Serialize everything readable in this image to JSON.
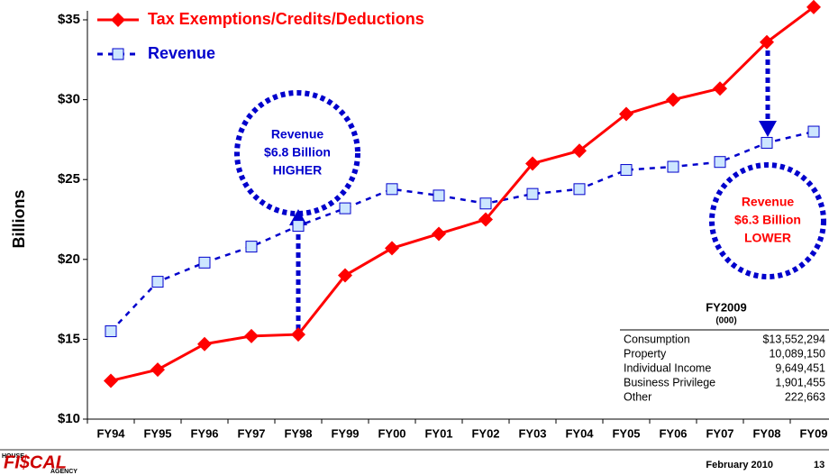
{
  "chart_data": {
    "type": "line",
    "y_label": "Billions",
    "categories": [
      "FY94",
      "FY95",
      "FY96",
      "FY97",
      "FY98",
      "FY99",
      "FY00",
      "FY01",
      "FY02",
      "FY03",
      "FY04",
      "FY05",
      "FY06",
      "FY07",
      "FY08",
      "FY09"
    ],
    "series": [
      {
        "name": "Tax Exemptions/Credits/Deductions",
        "color": "#ff0000",
        "marker": "diamond",
        "line": "solid",
        "values": [
          12.4,
          13.1,
          14.7,
          15.2,
          15.3,
          19.0,
          20.7,
          21.6,
          22.5,
          26.0,
          26.8,
          29.1,
          30.0,
          30.7,
          33.6,
          35.8
        ]
      },
      {
        "name": "Revenue",
        "color": "#0000cc",
        "marker": "square",
        "line": "dashed",
        "values": [
          15.5,
          18.6,
          19.8,
          20.8,
          22.1,
          23.2,
          24.4,
          24.0,
          23.5,
          24.1,
          24.4,
          25.6,
          25.8,
          26.1,
          27.3,
          28.0
        ]
      }
    ],
    "ylim": [
      10,
      35
    ],
    "yticks": [
      {
        "value": 10,
        "label": "$10"
      },
      {
        "value": 15,
        "label": "$15"
      },
      {
        "value": 20,
        "label": "$20"
      },
      {
        "value": 25,
        "label": "$25"
      },
      {
        "value": 30,
        "label": "$30"
      },
      {
        "value": 35,
        "label": "$35"
      }
    ],
    "legend": "top-left",
    "annotations": [
      {
        "lines": [
          "Revenue",
          "$6.8 Billion",
          "HIGHER"
        ],
        "color": "#0000cc"
      },
      {
        "lines": [
          "Revenue",
          "$6.3 Billion",
          "LOWER"
        ],
        "color": "#ff0000"
      }
    ]
  },
  "table": {
    "title": "FY2009",
    "subtitle": "(000)",
    "rows": [
      [
        "Consumption",
        "$13,552,294"
      ],
      [
        "Property",
        "10,089,150"
      ],
      [
        "Individual Income",
        "9,649,451"
      ],
      [
        "Business Privilege",
        "1,901,455"
      ],
      [
        "Other",
        "222,663"
      ]
    ]
  },
  "footer": {
    "logo": [
      "HOUSE",
      "FI$CAL",
      "AGENCY"
    ],
    "date": "February 2010",
    "page": "13"
  }
}
